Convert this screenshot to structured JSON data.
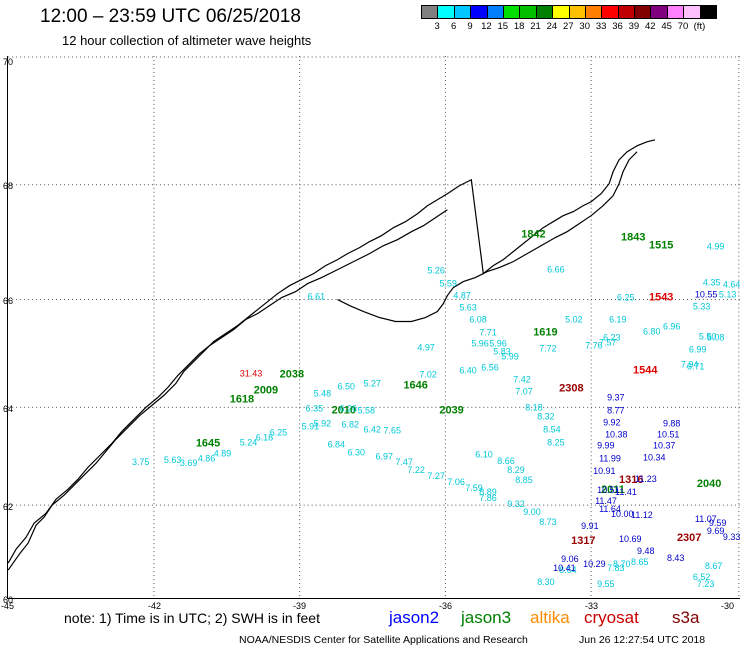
{
  "header": {
    "title": "12:00 – 23:59 UTC 06/25/2018",
    "subtitle": "12 hour collection of altimeter wave heights"
  },
  "scale": {
    "colors": [
      "#808080",
      "#00ffff",
      "#00c8ff",
      "#0000ff",
      "#0080ff",
      "#00e000",
      "#00c000",
      "#008000",
      "#ffff00",
      "#ffc000",
      "#ff8000",
      "#ff0000",
      "#c00000",
      "#800000",
      "#800080",
      "#ff80ff",
      "#ffc0ff",
      "#000000"
    ],
    "labels": [
      "3",
      "6",
      "9",
      "12",
      "15",
      "18",
      "21",
      "24",
      "27",
      "30",
      "33",
      "36",
      "39",
      "42",
      "45",
      "70",
      "(ft)"
    ]
  },
  "axes": {
    "lat_labels": [
      "70",
      "68",
      "66",
      "64",
      "62",
      "60"
    ],
    "lon_labels": [
      "-45",
      "-42",
      "-39",
      "-36",
      "-33",
      "-30"
    ]
  },
  "map_labels": [
    {
      "text": "1842",
      "color": "green"
    },
    {
      "text": "1843",
      "color": "green"
    },
    {
      "text": "1515",
      "color": "green"
    },
    {
      "text": "1543",
      "color": "red"
    },
    {
      "text": "1619",
      "color": "green"
    },
    {
      "text": "1544",
      "color": "red"
    },
    {
      "text": "31.43",
      "color": "red"
    },
    {
      "text": "2038",
      "color": "green"
    },
    {
      "text": "2009",
      "color": "green"
    },
    {
      "text": "1618",
      "color": "green"
    },
    {
      "text": "1646",
      "color": "green"
    },
    {
      "text": "2010",
      "color": "green"
    },
    {
      "text": "2039",
      "color": "green"
    },
    {
      "text": "2308",
      "color": "darkred"
    },
    {
      "text": "1645",
      "color": "green"
    },
    {
      "text": "1316",
      "color": "darkred"
    },
    {
      "text": "2011",
      "color": "green"
    },
    {
      "text": "2040",
      "color": "green"
    },
    {
      "text": "1317",
      "color": "darkred"
    },
    {
      "text": "2307",
      "color": "darkred"
    },
    {
      "text": "5.26",
      "color": "cyan"
    },
    {
      "text": "5.59",
      "color": "cyan"
    },
    {
      "text": "4.87",
      "color": "cyan"
    },
    {
      "text": "5.63",
      "color": "cyan"
    },
    {
      "text": "6.08",
      "color": "cyan"
    },
    {
      "text": "7.71",
      "color": "cyan"
    },
    {
      "text": "5.96",
      "color": "cyan"
    },
    {
      "text": "6.25",
      "color": "cyan"
    },
    {
      "text": "5.02",
      "color": "cyan"
    },
    {
      "text": "6.19",
      "color": "cyan"
    },
    {
      "text": "6.96",
      "color": "cyan"
    },
    {
      "text": "6.80",
      "color": "cyan"
    },
    {
      "text": "7.76",
      "color": "cyan"
    },
    {
      "text": "7.57",
      "color": "cyan"
    },
    {
      "text": "7.72",
      "color": "cyan"
    },
    {
      "text": "6.99",
      "color": "cyan"
    },
    {
      "text": "7.94",
      "color": "cyan"
    },
    {
      "text": "5.50",
      "color": "cyan"
    },
    {
      "text": "6.23",
      "color": "cyan"
    },
    {
      "text": "4.97",
      "color": "cyan"
    },
    {
      "text": "5.96",
      "color": "cyan"
    },
    {
      "text": "5.83",
      "color": "cyan"
    },
    {
      "text": "5.99",
      "color": "cyan"
    },
    {
      "text": "6.56",
      "color": "cyan"
    },
    {
      "text": "6.40",
      "color": "cyan"
    },
    {
      "text": "7.02",
      "color": "cyan"
    },
    {
      "text": "5.27",
      "color": "cyan"
    },
    {
      "text": "6.50",
      "color": "cyan"
    },
    {
      "text": "5.48",
      "color": "cyan"
    },
    {
      "text": "6.35",
      "color": "cyan"
    },
    {
      "text": "5.58",
      "color": "cyan"
    },
    {
      "text": "6.26",
      "color": "cyan"
    },
    {
      "text": "7.42",
      "color": "cyan"
    },
    {
      "text": "7.07",
      "color": "cyan"
    },
    {
      "text": "8.18",
      "color": "cyan"
    },
    {
      "text": "8.32",
      "color": "cyan"
    },
    {
      "text": "8.54",
      "color": "cyan"
    },
    {
      "text": "8.25",
      "color": "cyan"
    },
    {
      "text": "7.65",
      "color": "cyan"
    },
    {
      "text": "6.42",
      "color": "cyan"
    },
    {
      "text": "6.82",
      "color": "cyan"
    },
    {
      "text": "5.92",
      "color": "cyan"
    },
    {
      "text": "5.91",
      "color": "cyan"
    },
    {
      "text": "6.25",
      "color": "cyan"
    },
    {
      "text": "6.18",
      "color": "cyan"
    },
    {
      "text": "5.24",
      "color": "cyan"
    },
    {
      "text": "4.89",
      "color": "cyan"
    },
    {
      "text": "4.86",
      "color": "cyan"
    },
    {
      "text": "5.63",
      "color": "cyan"
    },
    {
      "text": "3.75",
      "color": "cyan"
    },
    {
      "text": "3.69",
      "color": "cyan"
    },
    {
      "text": "6.84",
      "color": "cyan"
    },
    {
      "text": "6.30",
      "color": "cyan"
    },
    {
      "text": "6.97",
      "color": "cyan"
    },
    {
      "text": "7.47",
      "color": "cyan"
    },
    {
      "text": "7.22",
      "color": "cyan"
    },
    {
      "text": "7.27",
      "color": "cyan"
    },
    {
      "text": "7.06",
      "color": "cyan"
    },
    {
      "text": "7.59",
      "color": "cyan"
    },
    {
      "text": "7.86",
      "color": "cyan"
    },
    {
      "text": "6.10",
      "color": "cyan"
    },
    {
      "text": "8.66",
      "color": "cyan"
    },
    {
      "text": "8.29",
      "color": "cyan"
    },
    {
      "text": "8.85",
      "color": "cyan"
    },
    {
      "text": "8.89",
      "color": "cyan"
    },
    {
      "text": "9.32",
      "color": "cyan"
    },
    {
      "text": "9.00",
      "color": "cyan"
    },
    {
      "text": "8.73",
      "color": "cyan"
    },
    {
      "text": "8.30",
      "color": "cyan"
    },
    {
      "text": "8.64",
      "color": "cyan"
    },
    {
      "text": "9.55",
      "color": "cyan"
    },
    {
      "text": "7.83",
      "color": "cyan"
    },
    {
      "text": "8.70",
      "color": "cyan"
    },
    {
      "text": "8.65",
      "color": "cyan"
    },
    {
      "text": "8.67",
      "color": "cyan"
    },
    {
      "text": "7.23",
      "color": "cyan"
    },
    {
      "text": "6.52",
      "color": "cyan"
    },
    {
      "text": "6.71",
      "color": "cyan"
    },
    {
      "text": "9.37",
      "color": "blue"
    },
    {
      "text": "8.77",
      "color": "blue"
    },
    {
      "text": "9.92",
      "color": "blue"
    },
    {
      "text": "9.88",
      "color": "blue"
    },
    {
      "text": "10.38",
      "color": "blue"
    },
    {
      "text": "10.51",
      "color": "blue"
    },
    {
      "text": "10.37",
      "color": "blue"
    },
    {
      "text": "9.99",
      "color": "blue"
    },
    {
      "text": "11.99",
      "color": "blue"
    },
    {
      "text": "10.34",
      "color": "blue"
    },
    {
      "text": "10.91",
      "color": "blue"
    },
    {
      "text": "11.23",
      "color": "blue"
    },
    {
      "text": "10.51",
      "color": "blue"
    },
    {
      "text": "11.41",
      "color": "blue"
    },
    {
      "text": "11.47",
      "color": "blue"
    },
    {
      "text": "11.64",
      "color": "blue"
    },
    {
      "text": "10.00",
      "color": "blue"
    },
    {
      "text": "11.12",
      "color": "blue"
    },
    {
      "text": "11.07",
      "color": "blue"
    },
    {
      "text": "9.59",
      "color": "blue"
    },
    {
      "text": "9.69",
      "color": "blue"
    },
    {
      "text": "9.33",
      "color": "blue"
    },
    {
      "text": "10.69",
      "color": "blue"
    },
    {
      "text": "9.48",
      "color": "blue"
    },
    {
      "text": "8.43",
      "color": "blue"
    },
    {
      "text": "9.06",
      "color": "blue"
    },
    {
      "text": "10.41",
      "color": "blue"
    },
    {
      "text": "10.29",
      "color": "blue"
    },
    {
      "text": "9.91",
      "color": "blue"
    },
    {
      "text": "10.55",
      "color": "blue"
    },
    {
      "text": "5.13",
      "color": "cyan"
    },
    {
      "text": "4.64",
      "color": "cyan"
    },
    {
      "text": "4.35",
      "color": "cyan"
    },
    {
      "text": "6.66",
      "color": "cyan"
    },
    {
      "text": "5.33",
      "color": "cyan"
    },
    {
      "text": "4.99",
      "color": "cyan"
    },
    {
      "text": "6.08",
      "color": "cyan"
    },
    {
      "text": "6.61",
      "color": "cyan"
    }
  ],
  "footer": {
    "note": "note:  1) Time is in UTC;  2) SWH is in feet",
    "sats": [
      {
        "name": "jason2",
        "color": "#0000ff"
      },
      {
        "name": "jason3",
        "color": "#008000"
      },
      {
        "name": "altika",
        "color": "#ff8c00"
      },
      {
        "name": "cryosat",
        "color": "#cc0000"
      },
      {
        "name": "s3a",
        "color": "#800000"
      }
    ],
    "credit": "NOAA/NESDIS Center for Satellite Applications and Research",
    "timestamp": "Jun 26 12:27:54 UTC 2018"
  }
}
